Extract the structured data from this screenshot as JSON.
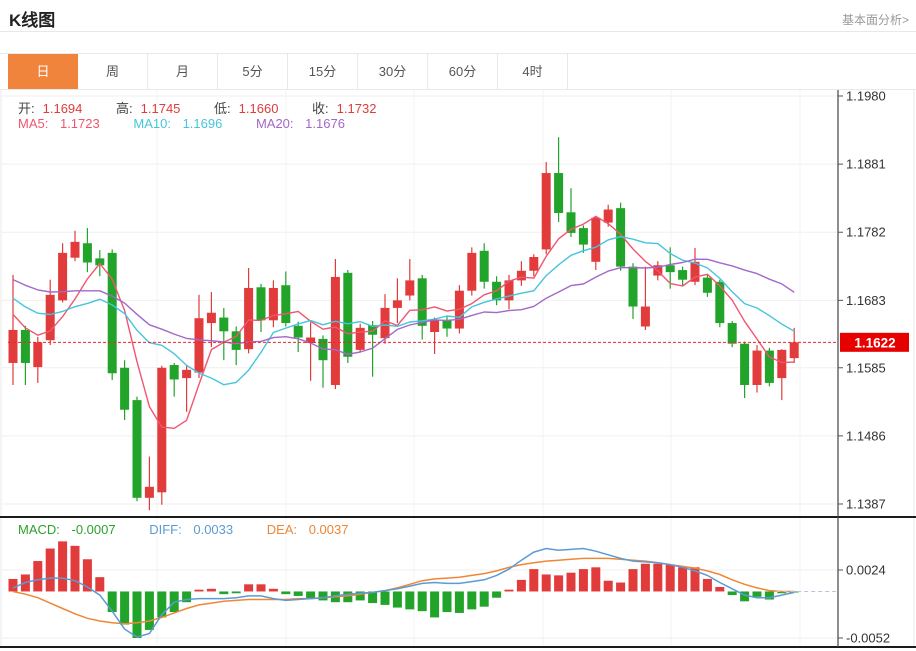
{
  "header": {
    "title": "K线图",
    "link": "基本面分析>"
  },
  "tabs": {
    "items": [
      {
        "label": "日",
        "active": true
      },
      {
        "label": "周",
        "active": false
      },
      {
        "label": "月",
        "active": false
      },
      {
        "label": "5分",
        "active": false
      },
      {
        "label": "15分",
        "active": false
      },
      {
        "label": "30分",
        "active": false
      },
      {
        "label": "60分",
        "active": false
      },
      {
        "label": "4时",
        "active": false
      }
    ]
  },
  "legend": {
    "open_label": "开:",
    "open": "1.1694",
    "high_label": "高:",
    "high": "1.1745",
    "low_label": "低:",
    "low": "1.1660",
    "close_label": "收:",
    "close": "1.1732",
    "ma5_label": "MA5:",
    "ma5": "1.1723",
    "ma10_label": "MA10:",
    "ma10": "1.1696",
    "ma20_label": "MA20:",
    "ma20": "1.1676"
  },
  "macd_legend": {
    "macd_label": "MACD:",
    "macd": "-0.0007",
    "diff_label": "DIFF:",
    "diff": "0.0033",
    "dea_label": "DEA:",
    "dea": "0.0037"
  },
  "chart_data": {
    "type": "candlestick+macd",
    "price_axis": {
      "max": 1.198,
      "min": 1.1387,
      "ticks": [
        1.198,
        1.1881,
        1.1782,
        1.1683,
        1.1585,
        1.1486,
        1.1387
      ],
      "last_price": 1.1622,
      "last_price_label": "1.1622"
    },
    "macd_axis": {
      "ticks": [
        0.0024,
        -0.0052
      ],
      "tick_labels": [
        "0.0024",
        "-0.0052"
      ],
      "zero": 0
    },
    "candles_ohlc_format": [
      "open",
      "high",
      "low",
      "close"
    ],
    "candles": [
      [
        1.1592,
        1.172,
        1.156,
        1.164
      ],
      [
        1.164,
        1.1646,
        1.156,
        1.1592
      ],
      [
        1.1586,
        1.163,
        1.1563,
        1.1622
      ],
      [
        1.1625,
        1.1713,
        1.1618,
        1.1691
      ],
      [
        1.1683,
        1.1766,
        1.168,
        1.1752
      ],
      [
        1.1745,
        1.1784,
        1.174,
        1.1768
      ],
      [
        1.1766,
        1.1788,
        1.1724,
        1.1738
      ],
      [
        1.1744,
        1.1756,
        1.1718,
        1.1734
      ],
      [
        1.1752,
        1.1757,
        1.1567,
        1.1577
      ],
      [
        1.1585,
        1.1596,
        1.1509,
        1.1524
      ],
      [
        1.1538,
        1.1543,
        1.1391,
        1.1396
      ],
      [
        1.1396,
        1.1456,
        1.1378,
        1.1412
      ],
      [
        1.1404,
        1.1588,
        1.1386,
        1.1585
      ],
      [
        1.1589,
        1.1592,
        1.1543,
        1.1568
      ],
      [
        1.157,
        1.1588,
        1.1521,
        1.1582
      ],
      [
        1.1578,
        1.1691,
        1.157,
        1.1657
      ],
      [
        1.165,
        1.1695,
        1.1615,
        1.1665
      ],
      [
        1.1658,
        1.1672,
        1.1596,
        1.1638
      ],
      [
        1.1638,
        1.1645,
        1.1589,
        1.1611
      ],
      [
        1.1612,
        1.173,
        1.1606,
        1.1701
      ],
      [
        1.1702,
        1.1707,
        1.1637,
        1.1654
      ],
      [
        1.1654,
        1.1712,
        1.1644,
        1.1701
      ],
      [
        1.1705,
        1.1725,
        1.1645,
        1.165
      ],
      [
        1.1646,
        1.1652,
        1.1608,
        1.1629
      ],
      [
        1.1621,
        1.1651,
        1.1566,
        1.1629
      ],
      [
        1.1627,
        1.1632,
        1.1556,
        1.1596
      ],
      [
        1.156,
        1.1743,
        1.1554,
        1.1717
      ],
      [
        1.1723,
        1.1727,
        1.1592,
        1.1601
      ],
      [
        1.1611,
        1.1649,
        1.1607,
        1.1643
      ],
      [
        1.1647,
        1.1653,
        1.1572,
        1.1633
      ],
      [
        1.1628,
        1.1692,
        1.162,
        1.1672
      ],
      [
        1.1672,
        1.1715,
        1.165,
        1.1683
      ],
      [
        1.169,
        1.1743,
        1.1683,
        1.1712
      ],
      [
        1.1715,
        1.172,
        1.1626,
        1.1646
      ],
      [
        1.1637,
        1.1658,
        1.1605,
        1.1654
      ],
      [
        1.1654,
        1.166,
        1.163,
        1.1642
      ],
      [
        1.1642,
        1.1705,
        1.1635,
        1.1697
      ],
      [
        1.1697,
        1.176,
        1.169,
        1.1752
      ],
      [
        1.1755,
        1.1766,
        1.17,
        1.171
      ],
      [
        1.171,
        1.1718,
        1.1676,
        1.1683
      ],
      [
        1.1683,
        1.172,
        1.167,
        1.1712
      ],
      [
        1.1712,
        1.174,
        1.1704,
        1.1726
      ],
      [
        1.1726,
        1.175,
        1.1718,
        1.1746
      ],
      [
        1.1757,
        1.1884,
        1.175,
        1.1868
      ],
      [
        1.1868,
        1.192,
        1.1797,
        1.181
      ],
      [
        1.1811,
        1.1846,
        1.1775,
        1.1781
      ],
      [
        1.1788,
        1.1792,
        1.1752,
        1.1764
      ],
      [
        1.1739,
        1.1805,
        1.1727,
        1.1803
      ],
      [
        1.1796,
        1.1822,
        1.179,
        1.1815
      ],
      [
        1.1817,
        1.1825,
        1.1726,
        1.1732
      ],
      [
        1.1732,
        1.1737,
        1.1656,
        1.1674
      ],
      [
        1.1645,
        1.1732,
        1.164,
        1.1674
      ],
      [
        1.1719,
        1.174,
        1.1712,
        1.1734
      ],
      [
        1.1734,
        1.176,
        1.17,
        1.1724
      ],
      [
        1.1727,
        1.1732,
        1.1705,
        1.1713
      ],
      [
        1.171,
        1.1759,
        1.1705,
        1.1739
      ],
      [
        1.1716,
        1.172,
        1.1688,
        1.1694
      ],
      [
        1.171,
        1.1713,
        1.1644,
        1.165
      ],
      [
        1.165,
        1.1653,
        1.1615,
        1.162
      ],
      [
        1.162,
        1.1623,
        1.1541,
        1.156
      ],
      [
        1.156,
        1.1618,
        1.1549,
        1.161
      ],
      [
        1.161,
        1.1614,
        1.1558,
        1.1563
      ],
      [
        1.157,
        1.1612,
        1.1538,
        1.1611
      ],
      [
        1.1599,
        1.1643,
        1.1592,
        1.1622
      ]
    ],
    "ma_periods": [
      5,
      10,
      20
    ],
    "ma_seed": [
      1.176,
      1.1755,
      1.175,
      1.1746,
      1.1742,
      1.1738,
      1.1734,
      1.173,
      1.1726,
      1.1722,
      1.1718,
      1.1714,
      1.171,
      1.1706,
      1.17,
      1.169,
      1.1675,
      1.166,
      1.1648
    ],
    "macd": {
      "hist": [
        0.0014,
        0.0019,
        0.0034,
        0.0048,
        0.0056,
        0.0051,
        0.0036,
        0.0016,
        -0.0023,
        -0.0037,
        -0.0052,
        -0.0043,
        -0.0029,
        -0.0023,
        -0.0012,
        0.0002,
        0.0003,
        -0.0003,
        -0.0002,
        0.0008,
        0.0008,
        0.0003,
        -0.0003,
        -0.0005,
        -0.0008,
        -0.001,
        -0.0012,
        -0.0012,
        -0.001,
        -0.0013,
        -0.0015,
        -0.0018,
        -0.002,
        -0.0022,
        -0.0029,
        -0.0023,
        -0.0024,
        -0.002,
        -0.0017,
        -0.0007,
        0.0002,
        0.0013,
        0.0025,
        0.0019,
        0.0018,
        0.0021,
        0.0025,
        0.0027,
        0.0012,
        0.001,
        0.0025,
        0.0031,
        0.0031,
        0.003,
        0.0027,
        0.0027,
        0.0014,
        0.0005,
        -0.0004,
        -0.0011,
        -0.0006,
        -0.0009,
        -0.0002,
        -0.0001
      ],
      "diff": [
        0.0004,
        0.001,
        0.0013,
        0.0015,
        0.0015,
        0.0012,
        0.0005,
        -0.0004,
        -0.0022,
        -0.0042,
        -0.0051,
        -0.0047,
        -0.0026,
        -0.0012,
        -0.0009,
        -0.0008,
        -0.0008,
        -0.0008,
        -0.0007,
        -0.0005,
        -0.0005,
        -0.0008,
        -0.001,
        -0.0009,
        -0.0008,
        -0.0007,
        -0.0005,
        -0.0003,
        -0.0002,
        -0.0001,
        0.0001,
        0.0003,
        0.0006,
        0.0009,
        0.001,
        0.0009,
        0.0009,
        0.0011,
        0.0013,
        0.0018,
        0.0025,
        0.0035,
        0.0044,
        0.0048,
        0.0046,
        0.0047,
        0.0048,
        0.0045,
        0.0041,
        0.0037,
        0.0034,
        0.0033,
        0.0032,
        0.003,
        0.0027,
        0.0023,
        0.0018,
        0.001,
        0.0003,
        -0.0004,
        -0.0007,
        -0.0007,
        -0.0004,
        -0.0001
      ],
      "dea": [
        0.0,
        -0.0003,
        -0.0007,
        -0.0013,
        -0.0019,
        -0.0025,
        -0.003,
        -0.0033,
        -0.0035,
        -0.0036,
        -0.0035,
        -0.0033,
        -0.0029,
        -0.0024,
        -0.0019,
        -0.0015,
        -0.0013,
        -0.0011,
        -0.001,
        -0.0009,
        -0.0009,
        -0.0009,
        -0.0009,
        -0.0008,
        -0.0008,
        -0.0007,
        -0.0006,
        -0.0005,
        -0.0003,
        -0.0001,
        0.0001,
        0.0004,
        0.0008,
        0.0012,
        0.0014,
        0.0015,
        0.0016,
        0.0018,
        0.002,
        0.0023,
        0.0027,
        0.003,
        0.0032,
        0.0034,
        0.0035,
        0.0036,
        0.0037,
        0.0037,
        0.0037,
        0.0036,
        0.0035,
        0.0034,
        0.0032,
        0.003,
        0.0028,
        0.0026,
        0.0023,
        0.0019,
        0.0013,
        0.0008,
        0.0004,
        0.0001,
        0.0,
        0.0
      ]
    },
    "colors": {
      "up": "#e23b3b",
      "down": "#22a32a",
      "ma5": "#ef5670",
      "ma10": "#45c5dd",
      "ma20": "#a368c9",
      "diff_line": "#5b9bd5",
      "dea_line": "#f08636",
      "last_price_line": "#f5222d",
      "badge_bg": "#e60000",
      "badge_text": "#ffffff",
      "grid": "#efefef",
      "axis": "#444444",
      "separator": "#1b1b1b",
      "accent_tab": "#f0843c"
    }
  }
}
